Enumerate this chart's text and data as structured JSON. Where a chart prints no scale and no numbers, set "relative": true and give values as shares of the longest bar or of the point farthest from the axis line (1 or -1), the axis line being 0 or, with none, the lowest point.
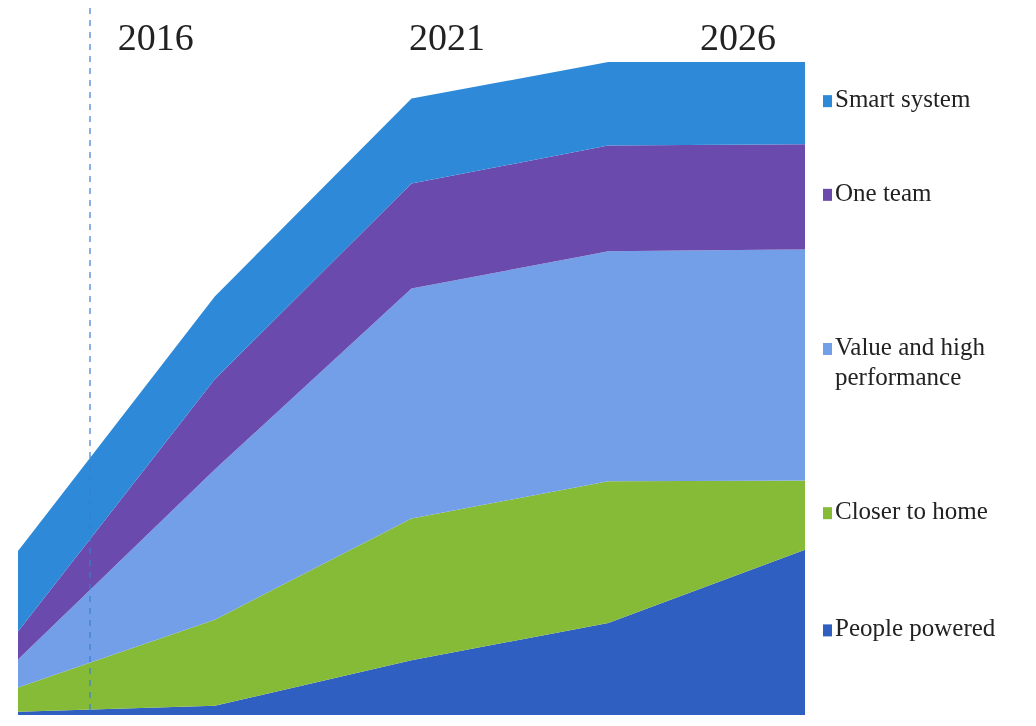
{
  "chart_data": {
    "type": "area",
    "stacked": true,
    "relative": true,
    "categories": [
      null,
      null,
      null,
      null,
      null
    ],
    "series": [
      {
        "name": "People powered",
        "color": "#2f5fc0",
        "values": [
          0.005,
          0.014,
          0.084,
          0.141,
          0.253
        ]
      },
      {
        "name": "Closer to home",
        "color": "#86bb38",
        "values": [
          0.037,
          0.132,
          0.217,
          0.217,
          0.106
        ]
      },
      {
        "name": "Value and high performance",
        "color": "#739fe8",
        "values": [
          0.043,
          0.23,
          0.352,
          0.352,
          0.354
        ]
      },
      {
        "name": "One team",
        "color": "#6a4aad",
        "values": [
          0.043,
          0.138,
          0.161,
          0.162,
          0.161
        ]
      },
      {
        "name": "Smart system",
        "color": "#2e8ad8",
        "values": [
          0.123,
          0.127,
          0.13,
          0.128,
          0.126
        ]
      }
    ],
    "annotations": [
      "2016",
      "2021",
      "2026"
    ],
    "legend": "right"
  }
}
